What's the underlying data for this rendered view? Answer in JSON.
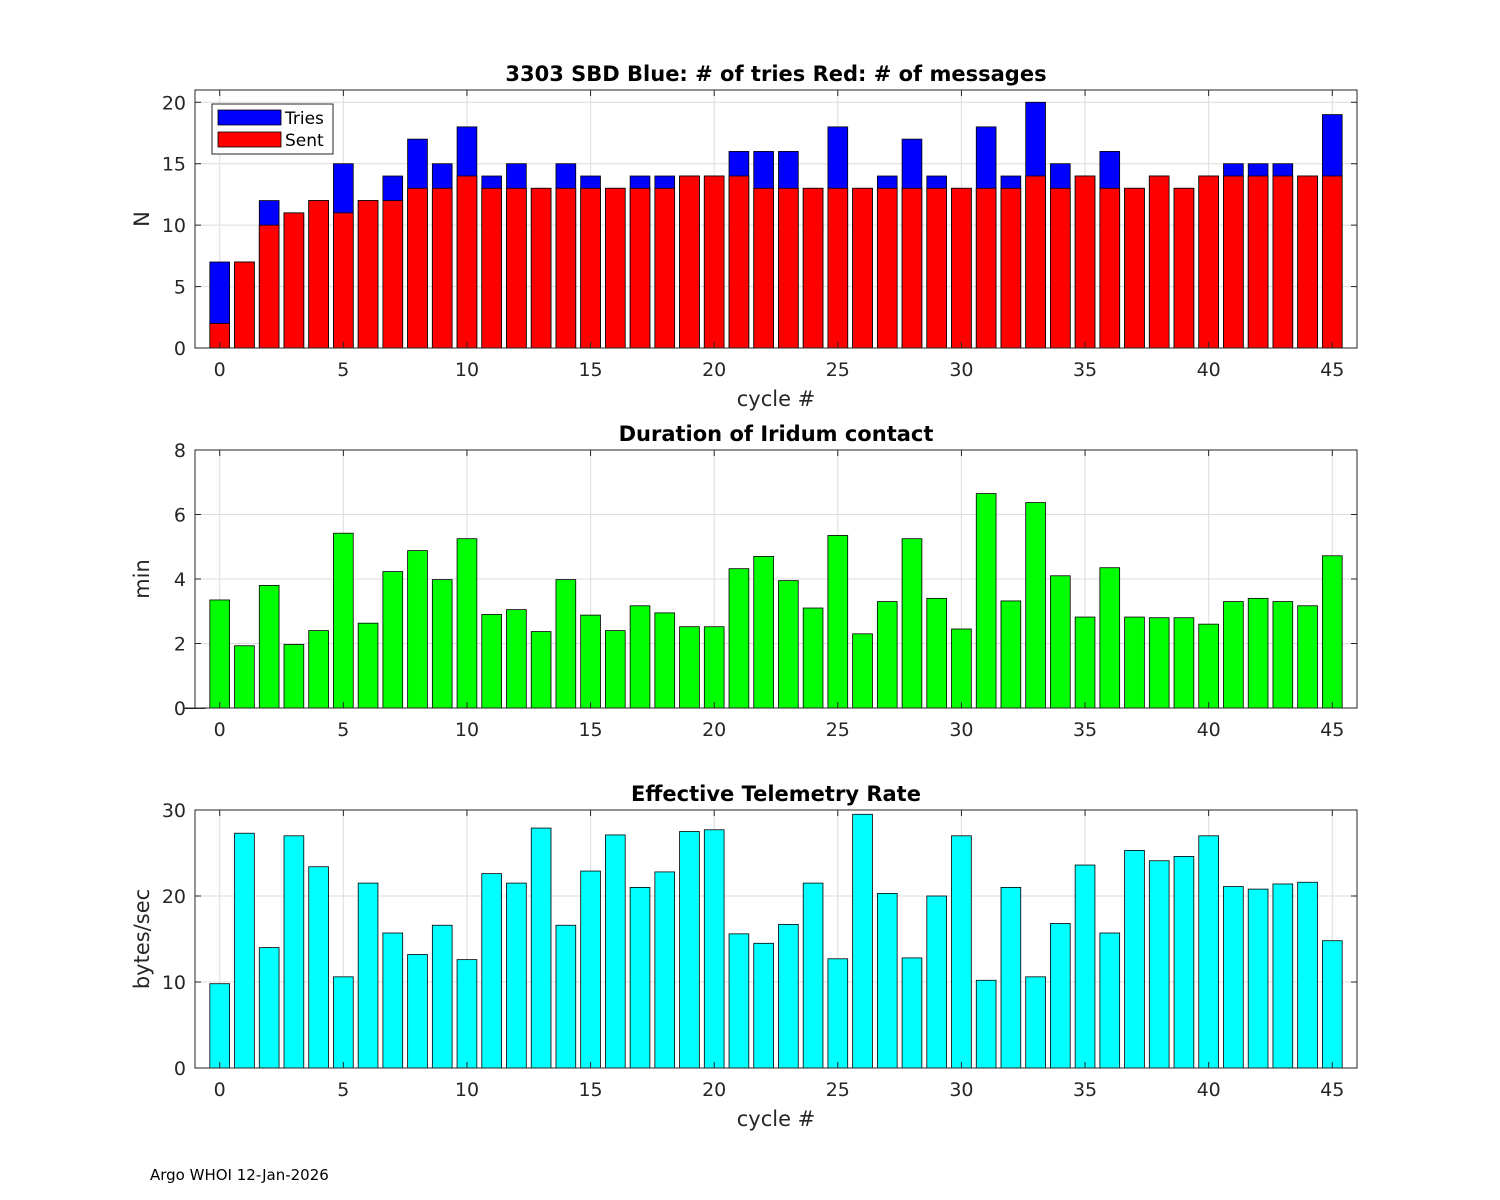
{
  "chart_data": [
    {
      "type": "bar",
      "stacked_overlay": true,
      "title": "3303 SBD  Blue: # of tries   Red: # of messages",
      "xlabel": "cycle #",
      "ylabel": "N",
      "xlim": [
        -1,
        46
      ],
      "ylim": [
        0,
        21
      ],
      "xticks": [
        0,
        5,
        10,
        15,
        20,
        25,
        30,
        35,
        40,
        45
      ],
      "yticks": [
        0,
        5,
        10,
        15,
        20
      ],
      "grid": true,
      "legend_position": "top-left",
      "x": [
        0,
        1,
        2,
        3,
        4,
        5,
        6,
        7,
        8,
        9,
        10,
        11,
        12,
        13,
        14,
        15,
        16,
        17,
        18,
        19,
        20,
        21,
        22,
        23,
        24,
        25,
        26,
        27,
        28,
        29,
        30,
        31,
        32,
        33,
        34,
        35,
        36,
        37,
        38,
        39,
        40,
        41,
        42,
        43,
        44,
        45
      ],
      "series": [
        {
          "name": "Tries",
          "color": "#0000ff",
          "values": [
            7,
            7,
            12,
            11,
            12,
            15,
            12,
            14,
            17,
            15,
            18,
            14,
            15,
            13,
            15,
            14,
            13,
            14,
            14,
            14,
            14,
            16,
            16,
            16,
            13,
            18,
            13,
            14,
            17,
            14,
            13,
            18,
            14,
            20,
            15,
            14,
            16,
            13,
            14,
            13,
            14,
            15,
            15,
            15,
            14,
            19
          ]
        },
        {
          "name": "Sent",
          "color": "#ff0000",
          "values": [
            2,
            7,
            10,
            11,
            12,
            11,
            12,
            12,
            13,
            13,
            14,
            13,
            13,
            13,
            13,
            13,
            13,
            13,
            13,
            14,
            14,
            14,
            13,
            13,
            13,
            13,
            13,
            13,
            13,
            13,
            13,
            13,
            13,
            14,
            13,
            14,
            13,
            13,
            14,
            13,
            14,
            14,
            14,
            14,
            14,
            14
          ]
        }
      ]
    },
    {
      "type": "bar",
      "title": "Duration of Iridum contact",
      "xlabel": "",
      "ylabel": "min",
      "xlim": [
        -1,
        46
      ],
      "ylim": [
        0,
        8
      ],
      "xticks": [
        0,
        5,
        10,
        15,
        20,
        25,
        30,
        35,
        40,
        45
      ],
      "yticks": [
        0,
        2,
        4,
        6,
        8
      ],
      "grid": true,
      "color": "#00ff00",
      "x": [
        -1,
        0,
        1,
        2,
        3,
        4,
        5,
        6,
        7,
        8,
        9,
        10,
        11,
        12,
        13,
        14,
        15,
        16,
        17,
        18,
        19,
        20,
        21,
        22,
        23,
        24,
        25,
        26,
        27,
        28,
        29,
        30,
        31,
        32,
        33,
        34,
        35,
        36,
        37,
        38,
        39,
        40,
        41,
        42,
        43,
        44,
        45
      ],
      "values": [
        0,
        3.35,
        1.93,
        3.8,
        1.97,
        2.4,
        5.42,
        2.63,
        4.23,
        4.88,
        3.98,
        5.25,
        2.9,
        3.05,
        2.37,
        3.98,
        2.88,
        2.4,
        3.17,
        2.95,
        2.52,
        2.52,
        4.32,
        4.7,
        3.95,
        3.1,
        5.35,
        2.3,
        3.3,
        5.25,
        3.4,
        2.45,
        6.65,
        3.32,
        6.37,
        4.1,
        2.82,
        4.35,
        2.82,
        2.8,
        2.8,
        2.6,
        3.3,
        3.4,
        3.3,
        3.17,
        4.72
      ]
    },
    {
      "type": "bar",
      "title": "Effective Telemetry Rate",
      "xlabel": "cycle #",
      "ylabel": "bytes/sec",
      "xlim": [
        -1,
        46
      ],
      "ylim": [
        0,
        30
      ],
      "xticks": [
        0,
        5,
        10,
        15,
        20,
        25,
        30,
        35,
        40,
        45
      ],
      "yticks": [
        0,
        10,
        20,
        30
      ],
      "grid": true,
      "color": "#00ffff",
      "x": [
        0,
        1,
        2,
        3,
        4,
        5,
        6,
        7,
        8,
        9,
        10,
        11,
        12,
        13,
        14,
        15,
        16,
        17,
        18,
        19,
        20,
        21,
        22,
        23,
        24,
        25,
        26,
        27,
        28,
        29,
        30,
        31,
        32,
        33,
        34,
        35,
        36,
        37,
        38,
        39,
        40,
        41,
        42,
        43,
        44,
        45
      ],
      "values": [
        9.8,
        27.3,
        14.0,
        27.0,
        23.4,
        10.6,
        21.5,
        15.7,
        13.2,
        16.6,
        12.6,
        22.6,
        21.5,
        27.9,
        16.6,
        22.9,
        27.1,
        21.0,
        22.8,
        27.5,
        27.7,
        15.6,
        14.5,
        16.7,
        21.5,
        12.7,
        29.5,
        20.3,
        12.8,
        20.0,
        27.0,
        10.2,
        21.0,
        10.6,
        16.8,
        23.6,
        15.7,
        25.3,
        24.1,
        24.6,
        27.0,
        21.1,
        20.8,
        21.4,
        21.6,
        14.8
      ]
    }
  ],
  "footer": "Argo WHOI 12-Jan-2026"
}
